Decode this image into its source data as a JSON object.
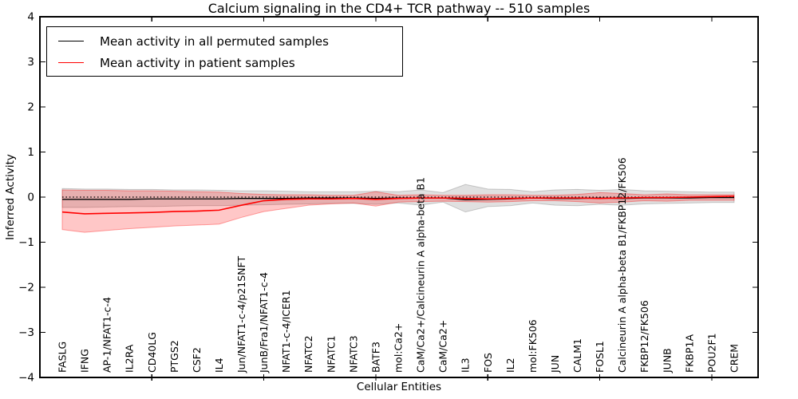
{
  "figure": {
    "title": "Calcium signaling in the CD4+ TCR pathway -- 510 samples",
    "legend": [
      {
        "label": "Mean activity in all permuted samples",
        "color": "#000000"
      },
      {
        "label": "Mean activity in patient samples",
        "color": "#ff0000"
      }
    ]
  },
  "chart_data": {
    "type": "line",
    "title": "Calcium signaling in the CD4+ TCR pathway -- 510 samples",
    "xlabel": "Cellular Entities",
    "ylabel": "Inferred Activity",
    "ylim": [
      -4,
      4
    ],
    "y_ticks": [
      4,
      3,
      2,
      1,
      0,
      -1,
      -2,
      -3,
      -4
    ],
    "y_tick_labels": [
      "4",
      "3",
      "2",
      "1",
      "0",
      "−1",
      "−2",
      "−3",
      "−4"
    ],
    "x_major_tick_indices": [
      4,
      9,
      14,
      19,
      24,
      29
    ],
    "grid": false,
    "legend_position": "upper left",
    "zero_line_style": "dotted",
    "categories": [
      "FASLG",
      "IFNG",
      "AP-1/NFAT1-c-4",
      "IL2RA",
      "CD40LG",
      "PTGS2",
      "CSF2",
      "IL4",
      "Jun/NFAT1-c-4/p21SNFT",
      "JunB/Fra1/NFAT1-c-4",
      "NFAT1-c-4/ICER1",
      "NFATC2",
      "NFATC1",
      "NFATC3",
      "BATF3",
      "mol:Ca2+",
      "CaM/Ca2+/Calcineurin A alpha-beta B1",
      "CaM/Ca2+",
      "IL3",
      "FOS",
      "IL2",
      "mol:FK506",
      "JUN",
      "CALM1",
      "FOSL1",
      "Calcineurin A alpha-beta B1/FKBP12/FK506",
      "FKBP12/FK506",
      "JUNB",
      "FKBP1A",
      "POU2F1",
      "CREM"
    ],
    "series": [
      {
        "name": "Mean activity in all permuted samples",
        "color": "#000000",
        "band_color": "rgba(0,0,0,0.12)",
        "band_edge_color": "rgba(0,0,0,0.18)",
        "values": [
          -0.05,
          -0.05,
          -0.05,
          -0.05,
          -0.04,
          -0.04,
          -0.04,
          -0.04,
          -0.03,
          -0.03,
          -0.03,
          -0.02,
          -0.02,
          -0.02,
          -0.03,
          -0.02,
          -0.02,
          -0.02,
          -0.06,
          -0.05,
          -0.04,
          -0.02,
          -0.03,
          -0.03,
          -0.02,
          -0.03,
          -0.02,
          -0.02,
          -0.02,
          -0.01,
          -0.01
        ],
        "band_upper": [
          0.19,
          0.18,
          0.18,
          0.17,
          0.17,
          0.16,
          0.16,
          0.15,
          0.14,
          0.14,
          0.13,
          0.12,
          0.12,
          0.12,
          0.13,
          0.12,
          0.16,
          0.1,
          0.28,
          0.18,
          0.17,
          0.12,
          0.16,
          0.17,
          0.15,
          0.17,
          0.14,
          0.13,
          0.12,
          0.11,
          0.11
        ],
        "band_lower": [
          -0.23,
          -0.23,
          -0.22,
          -0.21,
          -0.21,
          -0.2,
          -0.19,
          -0.19,
          -0.18,
          -0.17,
          -0.16,
          -0.15,
          -0.14,
          -0.14,
          -0.16,
          -0.13,
          -0.18,
          -0.11,
          -0.33,
          -0.21,
          -0.19,
          -0.13,
          -0.18,
          -0.19,
          -0.16,
          -0.18,
          -0.15,
          -0.14,
          -0.13,
          -0.12,
          -0.12
        ]
      },
      {
        "name": "Mean activity in patient samples",
        "color": "#ff0000",
        "band_color": "rgba(255,0,0,0.22)",
        "band_edge_color": "rgba(255,0,0,0.35)",
        "values": [
          -0.33,
          -0.37,
          -0.36,
          -0.35,
          -0.34,
          -0.32,
          -0.31,
          -0.29,
          -0.18,
          -0.08,
          -0.05,
          -0.04,
          -0.04,
          -0.03,
          -0.05,
          -0.03,
          -0.02,
          -0.02,
          -0.03,
          -0.04,
          -0.03,
          -0.02,
          -0.02,
          -0.02,
          -0.03,
          -0.02,
          -0.01,
          -0.01,
          0.0,
          0.01,
          0.02
        ],
        "band_upper": [
          0.16,
          0.15,
          0.15,
          0.14,
          0.14,
          0.13,
          0.12,
          0.11,
          0.08,
          0.06,
          0.05,
          0.05,
          0.04,
          0.04,
          0.12,
          0.04,
          0.05,
          0.04,
          0.04,
          0.05,
          0.05,
          0.04,
          0.04,
          0.06,
          0.1,
          0.08,
          0.05,
          0.07,
          0.05,
          0.05,
          0.05
        ],
        "band_lower": [
          -0.72,
          -0.78,
          -0.74,
          -0.7,
          -0.67,
          -0.64,
          -0.62,
          -0.6,
          -0.45,
          -0.32,
          -0.25,
          -0.18,
          -0.15,
          -0.13,
          -0.2,
          -0.11,
          -0.1,
          -0.09,
          -0.1,
          -0.11,
          -0.1,
          -0.08,
          -0.08,
          -0.1,
          -0.13,
          -0.11,
          -0.08,
          -0.09,
          -0.07,
          -0.07,
          -0.07
        ]
      }
    ]
  }
}
